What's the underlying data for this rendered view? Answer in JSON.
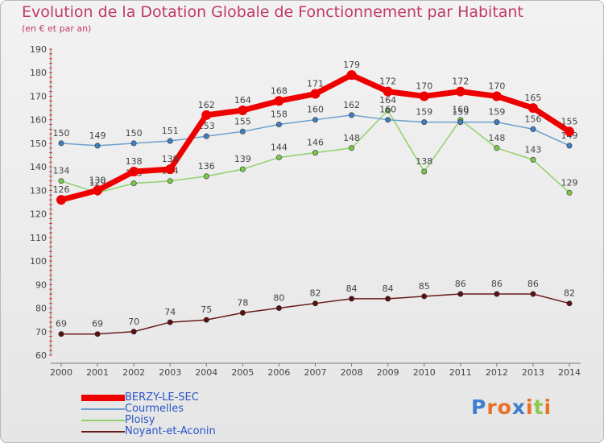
{
  "chart_data": {
    "type": "line",
    "title": "Evolution de la Dotation Globale de Fonctionnement par Habitant",
    "subtitle": "(en € et par an)",
    "xlabel": "",
    "ylabel": "",
    "ylim": [
      60,
      190
    ],
    "yticks": [
      60,
      70,
      80,
      90,
      100,
      110,
      120,
      130,
      140,
      150,
      160,
      170,
      180,
      190
    ],
    "grid": false,
    "legend_position": "bottom-left",
    "categories": [
      "2000",
      "2001",
      "2002",
      "2003",
      "2004",
      "2005",
      "2006",
      "2007",
      "2008",
      "2009",
      "2010",
      "2011",
      "2012",
      "2013",
      "2014"
    ],
    "series": [
      {
        "name": "Noyant-et-Aconin",
        "color": "#6b1a1a",
        "marker": "#5a1010",
        "values": [
          69,
          69,
          70,
          74,
          75,
          78,
          80,
          82,
          84,
          84,
          85,
          86,
          86,
          86,
          82
        ]
      },
      {
        "name": "Ploisy",
        "color": "#8fd16a",
        "marker": "#7cc84a",
        "values": [
          134,
          129,
          133,
          134,
          136,
          139,
          144,
          146,
          148,
          164,
          138,
          160,
          148,
          143,
          129
        ]
      },
      {
        "name": "Courmelles",
        "color": "#6a9fcf",
        "marker": "#3f7fbf",
        "values": [
          150,
          149,
          150,
          151,
          153,
          155,
          158,
          160,
          162,
          160,
          159,
          159,
          159,
          156,
          149
        ]
      },
      {
        "name": "BERZY-LE-SEC",
        "color": "#ee0000",
        "marker": "#ee0000",
        "values": [
          126,
          130,
          138,
          139,
          162,
          164,
          168,
          171,
          179,
          172,
          170,
          172,
          170,
          165,
          155
        ]
      }
    ]
  },
  "legend": {
    "items": [
      {
        "label": "BERZY-LE-SEC",
        "color": "#ee0000",
        "thickness": 8
      },
      {
        "label": "Courmelles",
        "color": "#6a9fcf",
        "thickness": 2
      },
      {
        "label": "Ploisy",
        "color": "#8fd16a",
        "thickness": 2
      },
      {
        "label": "Noyant-et-Aconin",
        "color": "#6b1a1a",
        "thickness": 2
      }
    ]
  },
  "logo": {
    "letters": [
      {
        "ch": "P",
        "color": "#3f7fd0"
      },
      {
        "ch": "r",
        "color": "#e8702a"
      },
      {
        "ch": "o",
        "color": "#e8702a"
      },
      {
        "ch": "x",
        "color": "#3f7fd0"
      },
      {
        "ch": "i",
        "color": "#e8702a"
      },
      {
        "ch": "t",
        "color": "#8cc84b"
      },
      {
        "ch": "i",
        "color": "#e8702a"
      }
    ]
  }
}
